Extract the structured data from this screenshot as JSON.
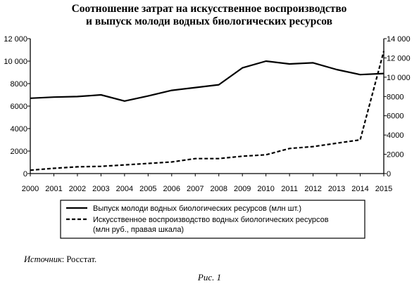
{
  "chart_data": {
    "type": "line",
    "title": [
      "Соотношение затрат на искусственное воспроизводство",
      "и выпуск молоди водных биологических ресурсов"
    ],
    "x": [
      2000,
      2001,
      2002,
      2003,
      2004,
      2005,
      2006,
      2007,
      2008,
      2009,
      2010,
      2011,
      2012,
      2013,
      2014,
      2015
    ],
    "series": [
      {
        "name": "Выпуск молоди водных биологических ресурсов (млн шт.)",
        "axis": "left",
        "style": "solid",
        "values": [
          6700,
          6800,
          6850,
          7000,
          6450,
          6900,
          7400,
          7650,
          7900,
          9400,
          10000,
          9750,
          9850,
          9250,
          8800,
          8900
        ]
      },
      {
        "name": [
          "Искусственное воспроизводство водных биологических ресурсов",
          "(млн руб., правая шкала)"
        ],
        "axis": "right",
        "style": "dashed",
        "values": [
          350,
          550,
          700,
          750,
          900,
          1050,
          1200,
          1550,
          1550,
          1800,
          1950,
          2600,
          2800,
          3150,
          3500,
          12700
        ]
      }
    ],
    "yleft": {
      "ylim": [
        0,
        12000
      ],
      "ticks": [
        0,
        2000,
        4000,
        6000,
        8000,
        10000,
        12000
      ],
      "tick_labels": [
        "0",
        "2000",
        "4000",
        "6000",
        "8000",
        "10 000",
        "12 000"
      ]
    },
    "yright": {
      "ylim": [
        0,
        14000
      ],
      "ticks": [
        0,
        2000,
        4000,
        6000,
        8000,
        10000,
        12000,
        14000
      ],
      "tick_labels": [
        "0",
        "2000",
        "4000",
        "6000",
        "8000",
        "10 000",
        "12 000",
        "14 000"
      ]
    },
    "grid": false,
    "legend_placement": "bottom"
  },
  "source": {
    "label": "Источник",
    "text": ": Росстат."
  },
  "figure_caption": "Рис. 1"
}
